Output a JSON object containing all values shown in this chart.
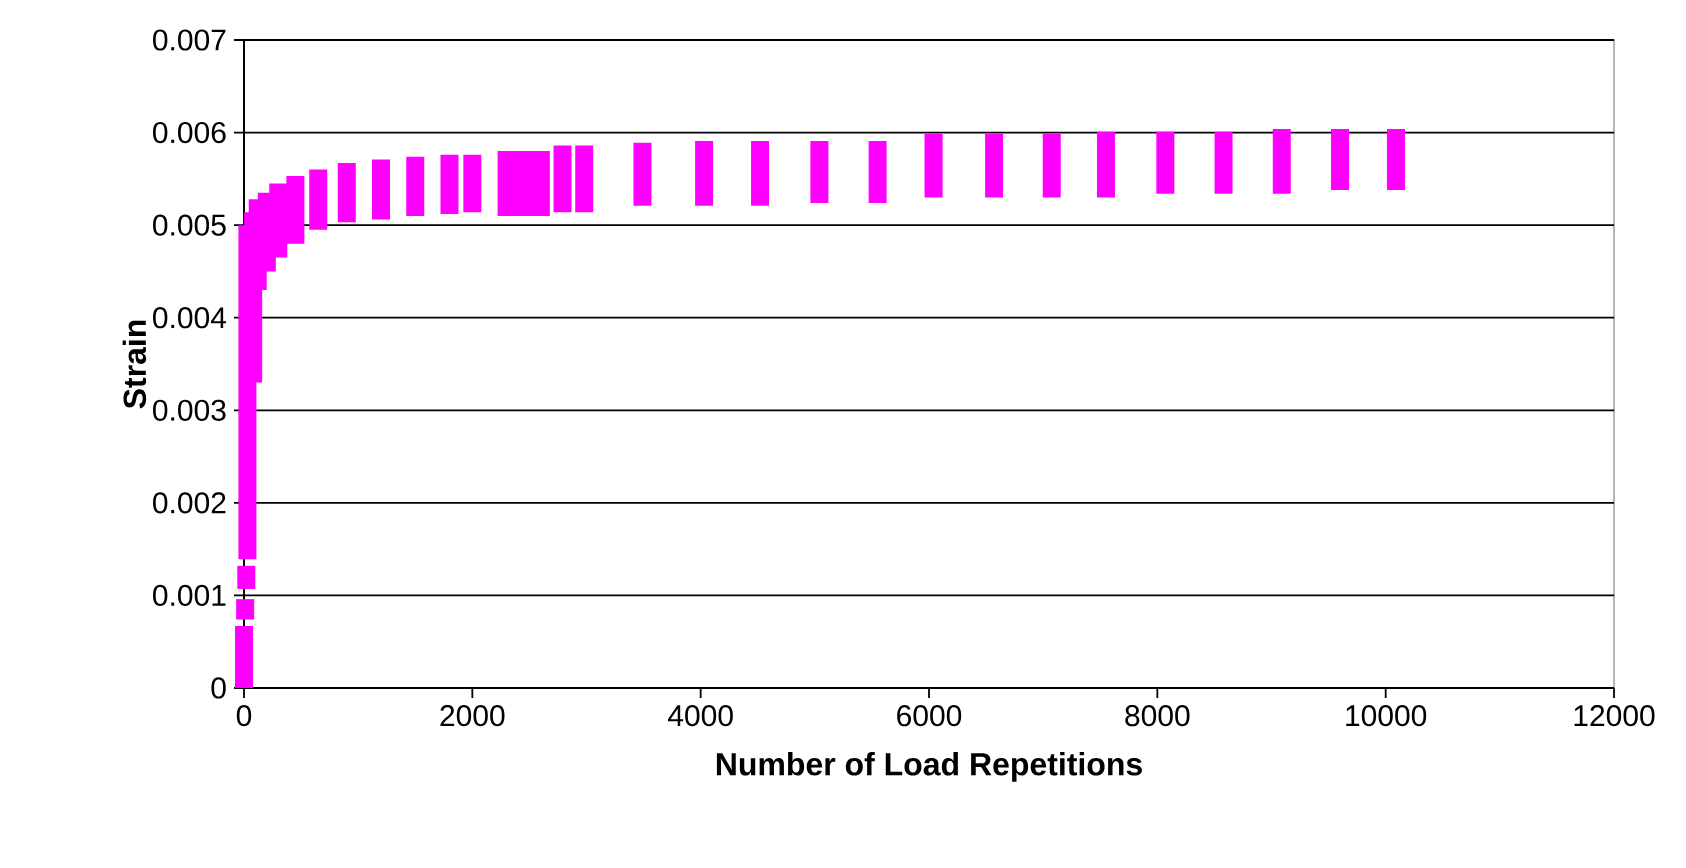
{
  "chart_data": {
    "type": "bar",
    "xlabel": "Number of Load Repetitions",
    "ylabel": "Strain",
    "color": "#ff00ff",
    "x": [
      0,
      10,
      20,
      30,
      80,
      120,
      200,
      300,
      450,
      650,
      900,
      1200,
      1500,
      1800,
      2000,
      2300,
      2450,
      2600,
      2790,
      2980,
      3490,
      4030,
      4520,
      5040,
      5550,
      6040,
      6570,
      7075,
      7550,
      8070,
      8580,
      9090,
      9600,
      10090
    ],
    "base": [
      0,
      0.00074,
      0.00107,
      0.00139,
      0.0033,
      0.0043,
      0.0045,
      0.00465,
      0.0048,
      0.00495,
      0.00503,
      0.00506,
      0.0051,
      0.00512,
      0.00514,
      0.0051,
      0.0051,
      0.0051,
      0.00514,
      0.00514,
      0.00521,
      0.00521,
      0.00521,
      0.00524,
      0.00524,
      0.0053,
      0.0053,
      0.0053,
      0.0053,
      0.00534,
      0.00534,
      0.00534,
      0.00538,
      0.00538
    ],
    "values": [
      0.00067,
      0.00022,
      0.00025,
      0.00361,
      0.00184,
      0.00098,
      0.00085,
      0.0008,
      0.00073,
      0.00065,
      0.00064,
      0.00065,
      0.00064,
      0.00064,
      0.00062,
      0.0007,
      0.0007,
      0.0007,
      0.00072,
      0.00072,
      0.00068,
      0.0007,
      0.0007,
      0.00067,
      0.00067,
      0.00069,
      0.00069,
      0.00069,
      0.00071,
      0.00067,
      0.00067,
      0.0007,
      0.00066,
      0.00066
    ],
    "xlim": [
      0,
      12000
    ],
    "ylim": [
      0,
      0.007
    ],
    "xticks": [
      0,
      2000,
      4000,
      6000,
      8000,
      10000,
      12000
    ],
    "yticks": [
      0,
      0.001,
      0.002,
      0.003,
      0.004,
      0.005,
      0.006,
      0.007
    ],
    "grid": "y"
  }
}
